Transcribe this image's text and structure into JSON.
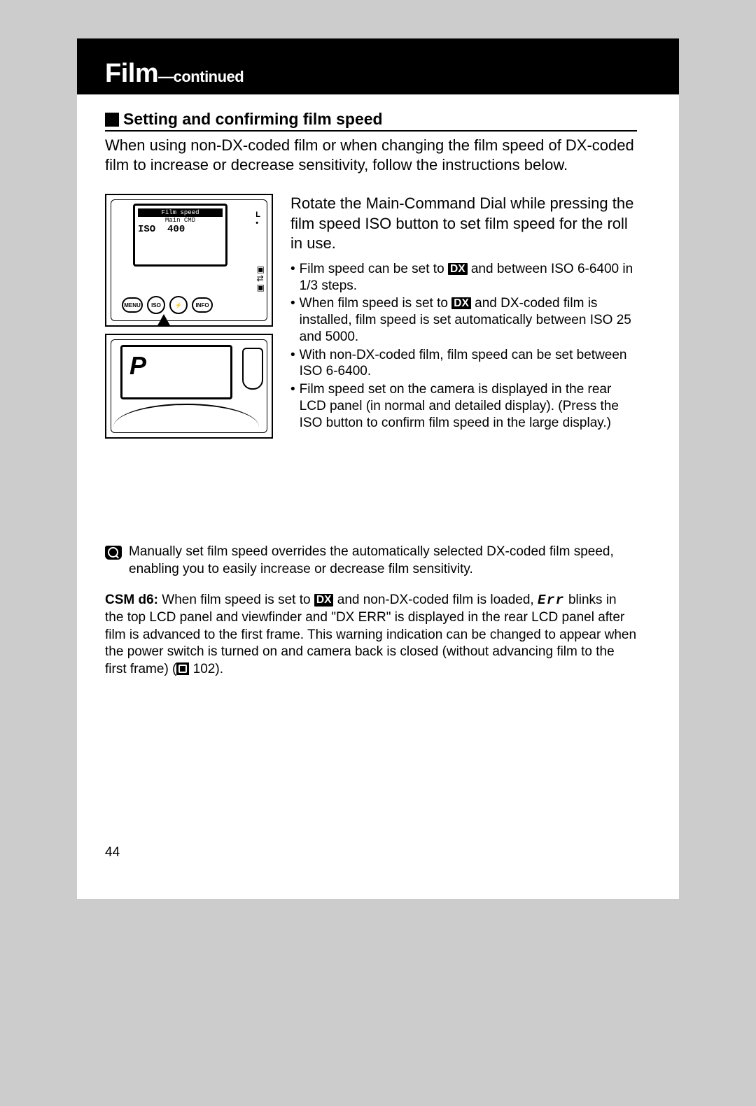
{
  "header": {
    "title": "Film",
    "subtitle": "—continued"
  },
  "section": {
    "title": "Setting and confirming film speed",
    "intro": "When using non-DX-coded film or when changing the film speed of DX-coded film to increase or decrease sensitivity, follow the instructions below."
  },
  "illustration1": {
    "lcd_line1": "Film speed",
    "lcd_line2": "Main CMD",
    "lcd_line3_prefix": "ISO",
    "lcd_line3_value": "400",
    "btn_menu": "MENU",
    "btn_iso": "ISO",
    "btn_flash": "⚡",
    "btn_info": "INFO",
    "right_badge_top": "L",
    "right_dot": "•"
  },
  "illustration2": {
    "p_letter": "P"
  },
  "step": {
    "title": "Rotate the Main-Command Dial while pressing the film speed ISO button to set film speed for the roll in use.",
    "bullet1_a": "Film speed can be set to ",
    "bullet1_b": " and between ISO 6-6400 in 1/3 steps.",
    "bullet2_a": "When film speed is set to ",
    "bullet2_b": " and DX-coded film is installed, film speed is set automatically between ISO 25 and 5000.",
    "bullet3": "With non-DX-coded film, film speed can be set between ISO 6-6400.",
    "bullet4": "Film speed set on the camera is displayed in the rear LCD panel (in normal and detailed display). (Press the ISO button to confirm film speed in the large display.)"
  },
  "note": {
    "text": "Manually set film speed overrides the automatically selected DX-coded film speed, enabling you to easily increase or decrease film sensitivity."
  },
  "csm": {
    "label": "CSM d6:",
    "part_a": " When film speed is set to ",
    "part_b": " and non-DX-coded film is loaded, ",
    "err": "Err",
    "part_c": " blinks in the top LCD panel and viewfinder and \"DX ERR\" is displayed in the rear LCD panel after film is advanced to the first frame. This warning indication can be changed to appear when the power switch is turned on and camera back is closed (without advancing film to the first frame) (",
    "page_ref": " 102)."
  },
  "dx_label": "DX",
  "page_number": "44",
  "colors": {
    "page_bg": "#ffffff",
    "outer_bg": "#cccccc",
    "header_bg": "#000000",
    "text": "#000000"
  }
}
